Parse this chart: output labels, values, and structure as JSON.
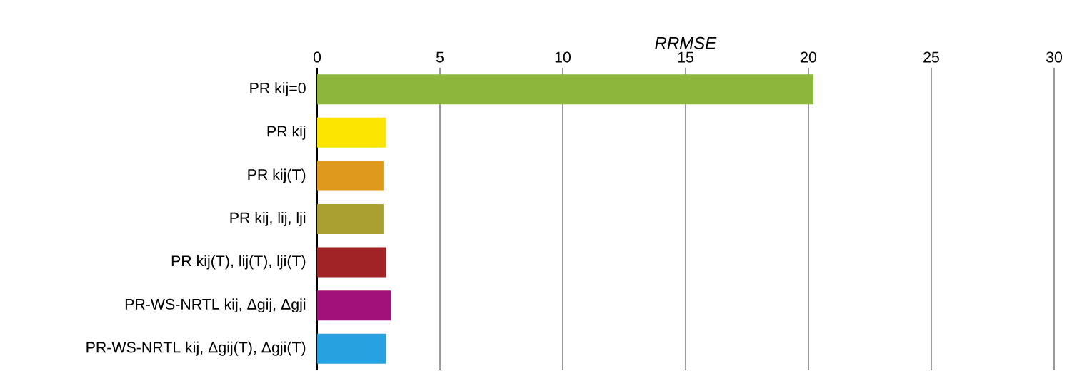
{
  "chart_data": {
    "type": "bar",
    "orientation": "horizontal",
    "xlabel": "*RRMSE*",
    "categories": [
      "PR kij=0",
      "PR kij",
      "PR kij(T)",
      "PR kij, lij, lji",
      "PR kij(T), lij(T), lji(T)",
      "PR-WS-NRTL kij, Δgij, Δgji",
      "PR-WS-NRTL kij, Δgij(T), Δgji(T)"
    ],
    "values": [
      20.2,
      2.8,
      2.7,
      2.7,
      2.8,
      3.0,
      2.8
    ],
    "colors": [
      "#8db63c",
      "#fce500",
      "#df9a1e",
      "#a9a031",
      "#a12325",
      "#a2117a",
      "#27a1e0"
    ],
    "xlim": [
      0,
      30
    ],
    "xticks": [
      0,
      5,
      10,
      15,
      20,
      25,
      30
    ],
    "grid": "x"
  }
}
